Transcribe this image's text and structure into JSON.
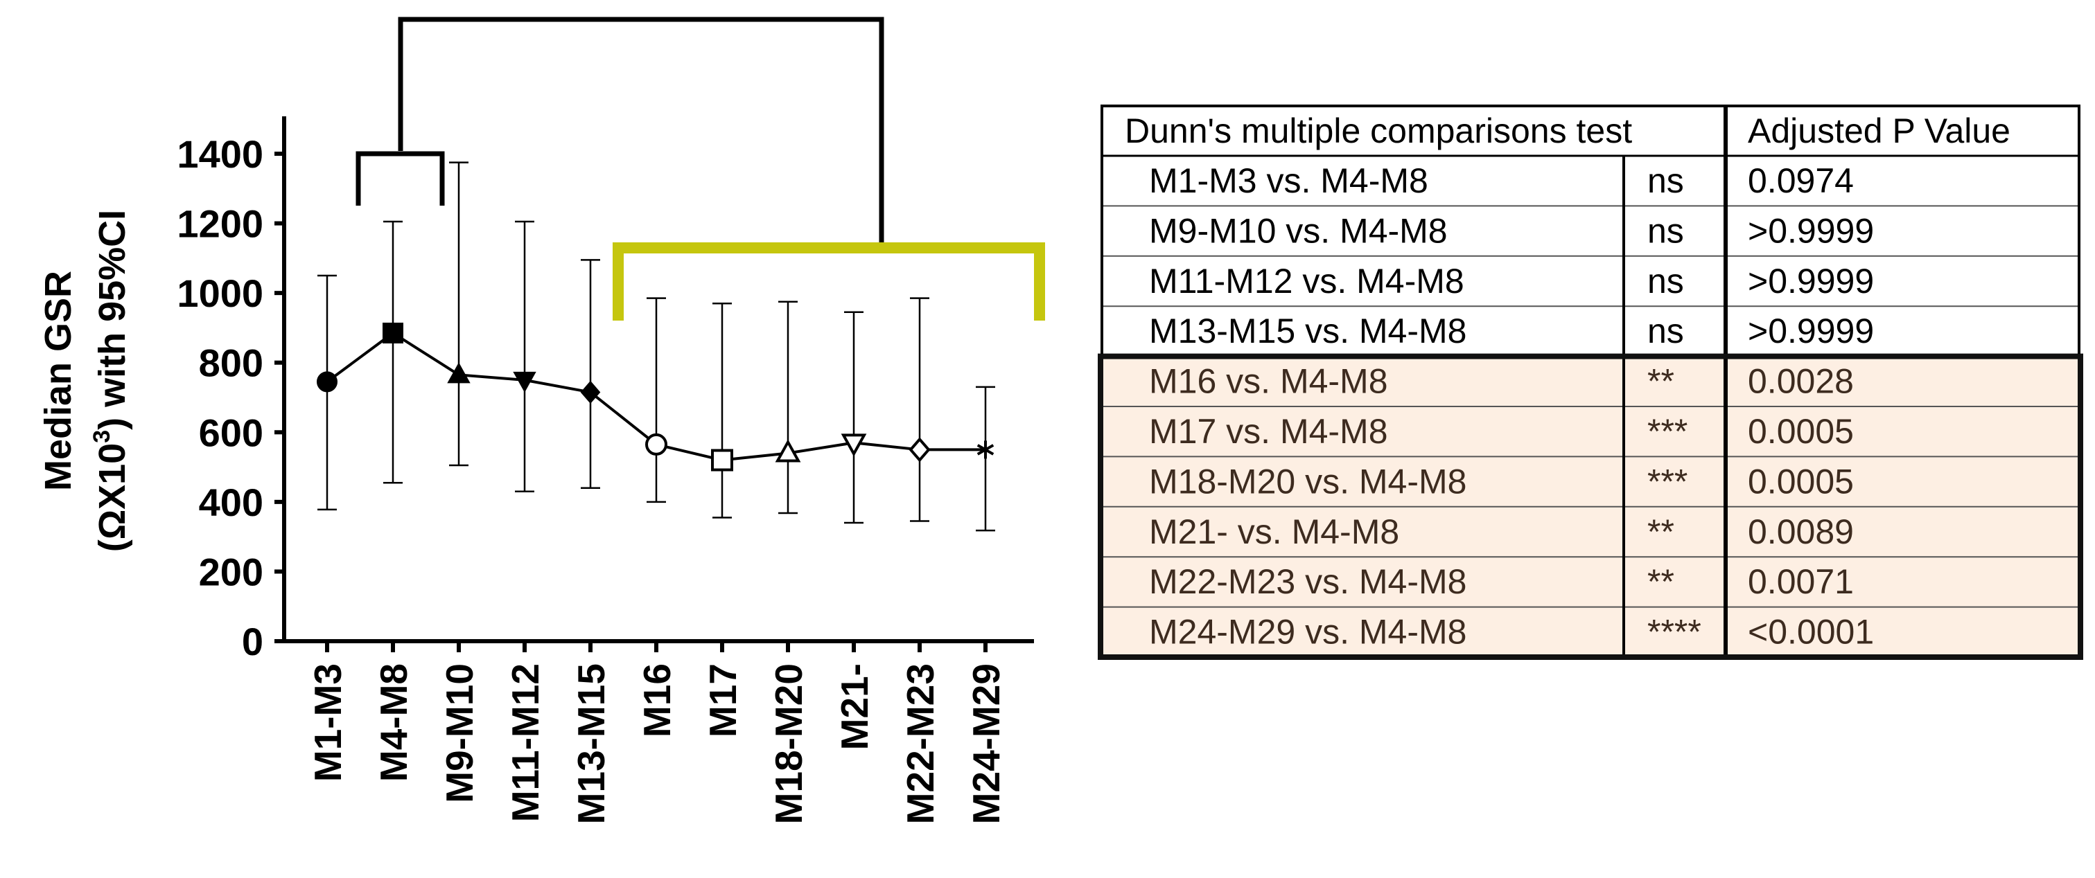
{
  "chart_data": {
    "type": "line",
    "ylabel_line1": "Median GSR",
    "ylabel_line2_prefix": "(ΩX10",
    "ylabel_line2_sup": "3",
    "ylabel_line2_suffix": ") with 95%CI",
    "ylim": [
      0,
      1500
    ],
    "yticks": [
      0,
      200,
      400,
      600,
      800,
      1000,
      1200,
      1400
    ],
    "categories": [
      "M1-M3",
      "M4-M8",
      "M9-M10",
      "M11-M12",
      "M13-M15",
      "M16",
      "M17",
      "M18-M20",
      "M21-",
      "M22-M23",
      "M24-M29"
    ],
    "median": [
      745,
      885,
      765,
      750,
      715,
      565,
      520,
      540,
      570,
      550,
      550
    ],
    "ci_upper": [
      1050,
      1205,
      1375,
      1205,
      1095,
      985,
      970,
      975,
      945,
      985,
      730
    ],
    "ci_lower": [
      378,
      455,
      505,
      430,
      440,
      400,
      355,
      368,
      340,
      345,
      318
    ],
    "markers": [
      "filled-circle",
      "filled-square",
      "filled-triangle-up",
      "filled-triangle-down",
      "filled-diamond",
      "open-circle",
      "open-square",
      "open-triangle-up",
      "open-triangle-down",
      "open-diamond",
      "asterisk"
    ],
    "grid": false,
    "bracket_color": "#c5c60e",
    "highlight_color": "#fdefe3"
  },
  "table": {
    "header_comparison": "Dunn's multiple comparisons test",
    "header_p": "Adjusted P Value",
    "rows": [
      {
        "comparison": "M1-M3 vs. M4-M8",
        "sig": "ns",
        "p": "0.0974",
        "highlight": false
      },
      {
        "comparison": "M9-M10 vs. M4-M8",
        "sig": "ns",
        "p": ">0.9999",
        "highlight": false
      },
      {
        "comparison": "M11-M12 vs. M4-M8",
        "sig": "ns",
        "p": ">0.9999",
        "highlight": false
      },
      {
        "comparison": "M13-M15 vs. M4-M8",
        "sig": "ns",
        "p": ">0.9999",
        "highlight": false
      },
      {
        "comparison": "M16 vs. M4-M8",
        "sig": "**",
        "p": "0.0028",
        "highlight": true
      },
      {
        "comparison": "M17 vs. M4-M8",
        "sig": "***",
        "p": "0.0005",
        "highlight": true
      },
      {
        "comparison": "M18-M20 vs. M4-M8",
        "sig": "***",
        "p": "0.0005",
        "highlight": true
      },
      {
        "comparison": "M21- vs. M4-M8",
        "sig": "**",
        "p": "0.0089",
        "highlight": true
      },
      {
        "comparison": "M22-M23 vs. M4-M8",
        "sig": "**",
        "p": "0.0071",
        "highlight": true
      },
      {
        "comparison": "M24-M29 vs. M4-M8",
        "sig": "****",
        "p": "<0.0001",
        "highlight": true
      }
    ]
  }
}
